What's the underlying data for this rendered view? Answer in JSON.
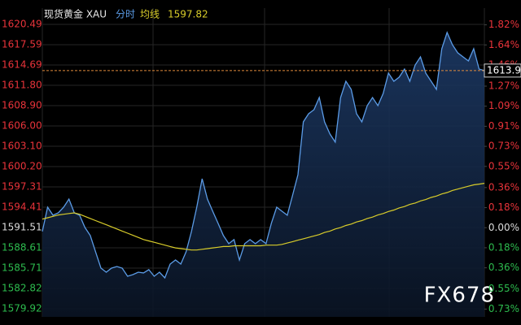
{
  "chart_data": {
    "type": "line",
    "title": "现货黄金 XAU",
    "watermark": "FX678",
    "categories": [
      null,
      null,
      null,
      null,
      null,
      null,
      null,
      null,
      null,
      null,
      null,
      null,
      null,
      null,
      null,
      null,
      null,
      null,
      null,
      null,
      null,
      null,
      null,
      null,
      null,
      null,
      null,
      null,
      null,
      null,
      null,
      null,
      null,
      null,
      null,
      null,
      null,
      null,
      null,
      null,
      null,
      null,
      null,
      null,
      null,
      null,
      null,
      null,
      null,
      null,
      null,
      null,
      null,
      null,
      null,
      null,
      null,
      null,
      null,
      null,
      null,
      null,
      null,
      null,
      null,
      null,
      null,
      null,
      null,
      null,
      null,
      null,
      null,
      null,
      null,
      null,
      null,
      null,
      null,
      null,
      null,
      null,
      null,
      null
    ],
    "series": [
      {
        "name": "分时",
        "color": "#5b9be6",
        "values": [
          1590.94,
          1594.41,
          1593.26,
          1593.6,
          1594.41,
          1595.57,
          1593.6,
          1593.26,
          1591.52,
          1590.36,
          1588.04,
          1585.72,
          1585.14,
          1585.72,
          1585.95,
          1585.72,
          1584.56,
          1584.79,
          1585.14,
          1585.03,
          1585.49,
          1584.56,
          1585.14,
          1584.33,
          1586.3,
          1586.88,
          1586.3,
          1588.04,
          1590.94,
          1594.41,
          1598.47,
          1595.57,
          1593.83,
          1592.1,
          1590.36,
          1589.2,
          1589.78,
          1586.88,
          1589.2,
          1589.78,
          1589.2,
          1589.78,
          1589.2,
          1592.1,
          1594.41,
          1593.83,
          1593.26,
          1596.15,
          1599.05,
          1606.58,
          1607.74,
          1608.32,
          1610.06,
          1606.58,
          1604.85,
          1603.69,
          1610.06,
          1612.38,
          1611.22,
          1607.74,
          1606.58,
          1608.9,
          1610.06,
          1608.9,
          1610.64,
          1613.54,
          1612.38,
          1612.96,
          1614.12,
          1612.38,
          1614.7,
          1615.86,
          1613.54,
          1612.38,
          1611.22,
          1617.01,
          1619.33,
          1617.59,
          1616.44,
          1615.86,
          1615.28,
          1617.01,
          1614.12,
          1613.9
        ]
      },
      {
        "name": "均线",
        "color": "#d8cc2a",
        "values": [
          1592.7,
          1592.9,
          1593.1,
          1593.3,
          1593.4,
          1593.5,
          1593.6,
          1593.4,
          1593.1,
          1592.8,
          1592.5,
          1592.2,
          1591.9,
          1591.6,
          1591.3,
          1591.0,
          1590.7,
          1590.4,
          1590.1,
          1589.8,
          1589.6,
          1589.4,
          1589.2,
          1589.0,
          1588.8,
          1588.6,
          1588.5,
          1588.4,
          1588.3,
          1588.3,
          1588.4,
          1588.5,
          1588.6,
          1588.7,
          1588.8,
          1588.8,
          1588.9,
          1588.9,
          1588.9,
          1588.9,
          1588.9,
          1588.9,
          1589.0,
          1589.0,
          1589.0,
          1589.1,
          1589.3,
          1589.5,
          1589.7,
          1589.9,
          1590.1,
          1590.3,
          1590.5,
          1590.8,
          1591.0,
          1591.3,
          1591.5,
          1591.8,
          1592.0,
          1592.3,
          1592.5,
          1592.8,
          1593.0,
          1593.3,
          1593.5,
          1593.8,
          1594.0,
          1594.3,
          1594.5,
          1594.8,
          1595.0,
          1595.3,
          1595.5,
          1595.8,
          1596.0,
          1596.3,
          1596.5,
          1596.8,
          1597.0,
          1597.2,
          1597.4,
          1597.6,
          1597.7,
          1597.82
        ]
      }
    ],
    "ylim": [
      1578.76,
      1622.81
    ],
    "yticks": [
      1620.49,
      1617.59,
      1614.69,
      {
        "value": 1611.8,
        "label": "1611.80"
      },
      {
        "value": 1608.9,
        "label": "1608.90"
      },
      {
        "value": 1606,
        "label": "1606.00"
      },
      {
        "value": 1603.1,
        "label": "1603.10"
      },
      {
        "value": 1600.2,
        "label": "1600.20"
      },
      1597.31,
      1594.41,
      1591.51,
      1588.61,
      1585.71,
      1582.82,
      1579.92
    ],
    "y2lim": [
      -0.8,
      1.97
    ],
    "y2ticks": [
      {
        "value": 1.82,
        "label": "1.82%"
      },
      {
        "value": 1.64,
        "label": "1.64%"
      },
      {
        "value": 1.46,
        "label": "1.46%"
      },
      {
        "value": 1.27,
        "label": "1.27%"
      },
      {
        "value": 1.09,
        "label": "1.09%"
      },
      {
        "value": 0.91,
        "label": "0.91%"
      },
      {
        "value": 0.73,
        "label": "0.73%"
      },
      {
        "value": 0.55,
        "label": "0.55%"
      },
      {
        "value": 0.36,
        "label": "0.36%"
      },
      {
        "value": 0.18,
        "label": "0.18%"
      },
      {
        "value": 0,
        "label": "0.00%"
      },
      {
        "value": -0.18,
        "label": "0.18%"
      },
      {
        "value": -0.36,
        "label": "0.36%"
      },
      {
        "value": -0.55,
        "label": "0.55%"
      },
      {
        "value": -0.73,
        "label": "0.73%"
      }
    ],
    "grid": true
  }
}
